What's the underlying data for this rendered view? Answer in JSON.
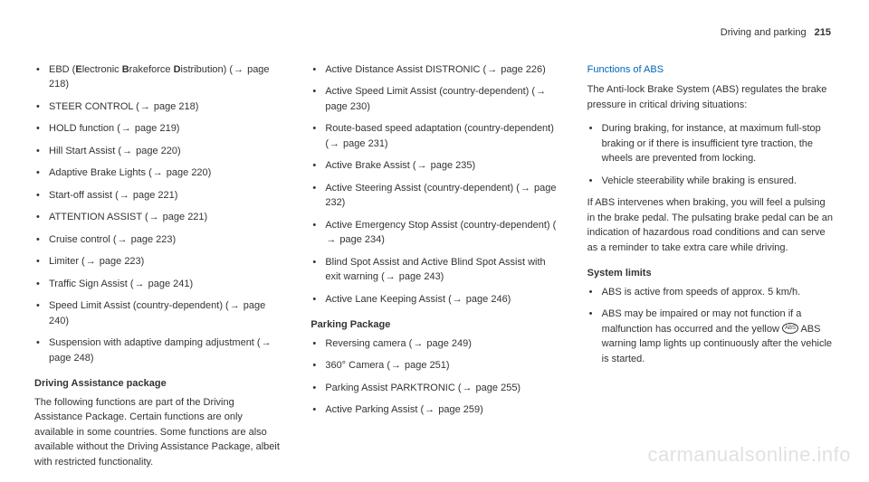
{
  "header": {
    "section": "Driving and parking",
    "pagenum": "215"
  },
  "col1": {
    "bullets": [
      {
        "html": true,
        "text": "EBD (<span class='b'>E</span>lectronic <span class='b'>B</span>rakeforce <span class='b'>D</span>istribution) (<span class='arrow'>→</span> page 218)"
      },
      {
        "text": "STEER CONTROL (→ page 218)"
      },
      {
        "text": "HOLD function (→ page 219)"
      },
      {
        "text": "Hill Start Assist (→ page 220)"
      },
      {
        "text": "Adaptive Brake Lights (→ page 220)"
      },
      {
        "text": "Start-off assist (→ page 221)"
      },
      {
        "text": "ATTENTION ASSIST (→ page 221)"
      },
      {
        "text": "Cruise control (→ page 223)"
      },
      {
        "text": "Limiter (→ page 223)"
      },
      {
        "text": "Traffic Sign Assist (→ page 241)"
      },
      {
        "text": "Speed Limit Assist (country-dependent) (→ page 240)"
      },
      {
        "text": "Suspension with adaptive damping adjustment (→ page 248)"
      }
    ],
    "dap_head": "Driving Assistance package",
    "dap_text": "The following functions are part of the Driving Assistance Package. Certain functions are only available in some countries. Some functions are also available without the Driving Assistance Package, albeit with restricted functionality."
  },
  "col2": {
    "bullets": [
      {
        "text": "Active Distance Assist DISTRONIC (→ page 226)"
      },
      {
        "text": "Active Speed Limit Assist (country-dependent) (→ page 230)"
      },
      {
        "text": "Route-based speed adaptation (country-dependent) (→ page 231)"
      },
      {
        "text": "Active Brake Assist (→ page 235)"
      },
      {
        "text": "Active Steering Assist (country-dependent) (→ page 232)"
      },
      {
        "text": "Active Emergency Stop Assist (country-dependent) (→ page 234)"
      },
      {
        "text": "Blind Spot Assist and Active Blind Spot Assist with exit warning (→ page 243)"
      },
      {
        "text": "Active Lane Keeping Assist (→ page 246)"
      }
    ],
    "pp_head": "Parking Package",
    "pp_bullets": [
      {
        "text": "Reversing camera (→ page 249)"
      },
      {
        "text": "360° Camera (→ page 251)"
      },
      {
        "text": "Parking Assist PARKTRONIC (→ page 255)"
      },
      {
        "text": "Active Parking Assist (→ page 259)"
      }
    ]
  },
  "col3": {
    "abs_head": "Functions of ABS",
    "abs_intro": "The Anti-lock Brake System (ABS) regulates the brake pressure in critical driving situations:",
    "abs_bullets": [
      {
        "text": "During braking, for instance, at maximum full-stop braking or if there is insufficient tyre traction, the wheels are prevented from locking."
      },
      {
        "text": "Vehicle steerability while braking is ensured."
      }
    ],
    "abs_para": "If ABS intervenes when braking, you will feel a pulsing in the brake pedal. The pulsating brake pedal can be an indication of hazardous road conditions and can serve as a reminder to take extra care while driving.",
    "sys_head": "System limits",
    "sys_bullets": [
      {
        "text": "ABS is active from speeds of approx. 5 km/h."
      },
      {
        "html": true,
        "text": "ABS may be impaired or may not function if a malfunction has occurred and the yellow <span class='icon-abs'>ABS</span> ABS warning lamp lights up continuously after the vehicle is started."
      }
    ]
  },
  "watermark": "carmanualsonline.info"
}
